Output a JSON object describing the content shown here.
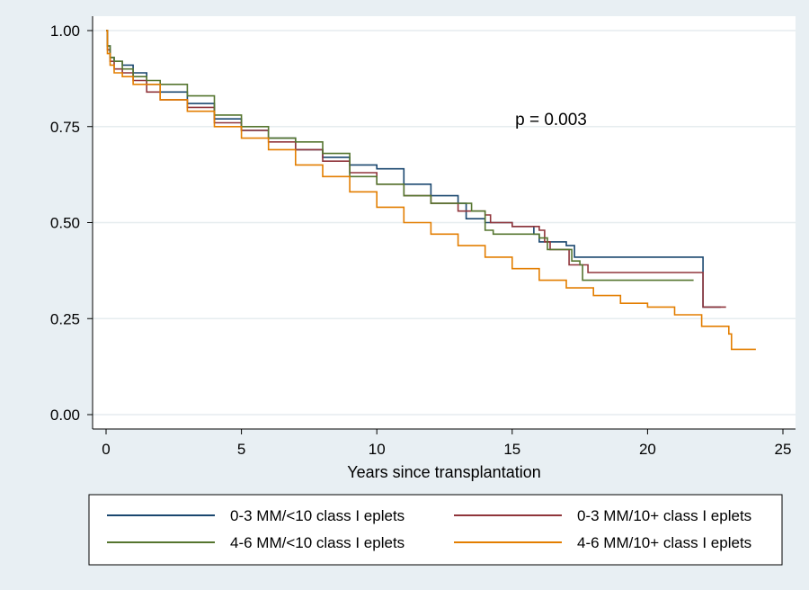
{
  "chart_data": {
    "type": "line",
    "step": true,
    "title": "",
    "annotation": "p = 0.003",
    "xlabel": "Years since transplantation",
    "ylabel": "",
    "xlim": [
      0,
      25
    ],
    "ylim": [
      0,
      1
    ],
    "x_ticks": [
      0,
      5,
      10,
      15,
      20,
      25
    ],
    "x_tick_labels": [
      "0",
      "5",
      "10",
      "15",
      "20",
      "25"
    ],
    "y_ticks": [
      0,
      0.25,
      0.5,
      0.75,
      1.0
    ],
    "y_tick_labels": [
      "0.00",
      "0.25",
      "0.50",
      "0.75",
      "1.00"
    ],
    "grid": "horizontal",
    "legend_position": "bottom",
    "series": [
      {
        "name": "0-3 MM/<10 class I eplets",
        "color": "#1a476f",
        "points": [
          [
            0,
            1.0
          ],
          [
            0.05,
            0.96
          ],
          [
            0.15,
            0.93
          ],
          [
            0.3,
            0.92
          ],
          [
            0.6,
            0.91
          ],
          [
            1,
            0.89
          ],
          [
            1.5,
            0.86
          ],
          [
            2,
            0.84
          ],
          [
            3,
            0.81
          ],
          [
            4,
            0.77
          ],
          [
            5,
            0.74
          ],
          [
            6,
            0.72
          ],
          [
            7,
            0.69
          ],
          [
            8,
            0.67
          ],
          [
            9,
            0.65
          ],
          [
            10,
            0.64
          ],
          [
            11,
            0.6
          ],
          [
            12,
            0.57
          ],
          [
            13,
            0.55
          ],
          [
            13.3,
            0.51
          ],
          [
            14,
            0.5
          ],
          [
            15,
            0.49
          ],
          [
            15.8,
            0.47
          ],
          [
            16,
            0.45
          ],
          [
            17,
            0.44
          ],
          [
            17.3,
            0.41
          ],
          [
            22,
            0.41
          ],
          [
            22.05,
            0.28
          ],
          [
            22.7,
            0.28
          ]
        ]
      },
      {
        "name": "0-3 MM/10+ class I eplets",
        "color": "#90353b",
        "points": [
          [
            0,
            1.0
          ],
          [
            0.05,
            0.95
          ],
          [
            0.15,
            0.92
          ],
          [
            0.3,
            0.9
          ],
          [
            0.6,
            0.89
          ],
          [
            1,
            0.87
          ],
          [
            1.5,
            0.84
          ],
          [
            2,
            0.82
          ],
          [
            3,
            0.8
          ],
          [
            4,
            0.76
          ],
          [
            5,
            0.74
          ],
          [
            6,
            0.71
          ],
          [
            7,
            0.69
          ],
          [
            8,
            0.66
          ],
          [
            9,
            0.63
          ],
          [
            10,
            0.6
          ],
          [
            11,
            0.57
          ],
          [
            12,
            0.55
          ],
          [
            13,
            0.53
          ],
          [
            14,
            0.52
          ],
          [
            14.2,
            0.5
          ],
          [
            15,
            0.49
          ],
          [
            16,
            0.48
          ],
          [
            16.2,
            0.45
          ],
          [
            16.4,
            0.43
          ],
          [
            17,
            0.43
          ],
          [
            17.1,
            0.39
          ],
          [
            17.6,
            0.39
          ],
          [
            17.8,
            0.37
          ],
          [
            22,
            0.37
          ],
          [
            22.05,
            0.28
          ],
          [
            22.9,
            0.28
          ]
        ]
      },
      {
        "name": "4-6 MM/<10 class I eplets",
        "color": "#55752f",
        "points": [
          [
            0,
            1.0
          ],
          [
            0.05,
            0.96
          ],
          [
            0.15,
            0.93
          ],
          [
            0.3,
            0.92
          ],
          [
            0.6,
            0.9
          ],
          [
            1,
            0.88
          ],
          [
            1.5,
            0.87
          ],
          [
            2,
            0.86
          ],
          [
            3,
            0.83
          ],
          [
            4,
            0.78
          ],
          [
            5,
            0.75
          ],
          [
            6,
            0.72
          ],
          [
            7,
            0.71
          ],
          [
            8,
            0.68
          ],
          [
            9,
            0.62
          ],
          [
            10,
            0.6
          ],
          [
            11,
            0.57
          ],
          [
            12,
            0.55
          ],
          [
            13,
            0.55
          ],
          [
            13.5,
            0.53
          ],
          [
            14,
            0.48
          ],
          [
            14.3,
            0.47
          ],
          [
            15,
            0.47
          ],
          [
            15.3,
            0.47
          ],
          [
            16,
            0.46
          ],
          [
            16.3,
            0.43
          ],
          [
            17,
            0.43
          ],
          [
            17.2,
            0.4
          ],
          [
            17.5,
            0.39
          ],
          [
            17.6,
            0.35
          ],
          [
            21.7,
            0.35
          ]
        ]
      },
      {
        "name": "4-6 MM/10+ class I eplets",
        "color": "#e37e00",
        "points": [
          [
            0,
            1.0
          ],
          [
            0.05,
            0.94
          ],
          [
            0.15,
            0.91
          ],
          [
            0.3,
            0.89
          ],
          [
            0.6,
            0.88
          ],
          [
            1,
            0.86
          ],
          [
            2,
            0.82
          ],
          [
            3,
            0.79
          ],
          [
            4,
            0.75
          ],
          [
            5,
            0.72
          ],
          [
            6,
            0.69
          ],
          [
            7,
            0.65
          ],
          [
            8,
            0.62
          ],
          [
            9,
            0.58
          ],
          [
            10,
            0.54
          ],
          [
            11,
            0.5
          ],
          [
            12,
            0.47
          ],
          [
            13,
            0.44
          ],
          [
            14,
            0.41
          ],
          [
            15,
            0.38
          ],
          [
            16,
            0.35
          ],
          [
            17,
            0.33
          ],
          [
            18,
            0.31
          ],
          [
            19,
            0.29
          ],
          [
            20,
            0.28
          ],
          [
            21,
            0.26
          ],
          [
            22,
            0.23
          ],
          [
            23,
            0.21
          ],
          [
            23.1,
            0.17
          ],
          [
            24,
            0.17
          ]
        ]
      }
    ]
  }
}
